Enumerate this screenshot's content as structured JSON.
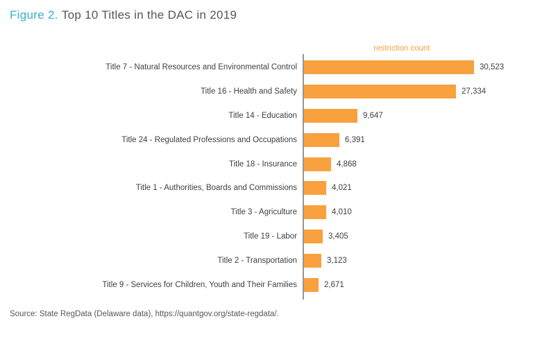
{
  "colors": {
    "accent_teal": "#35AFC9",
    "title_gray": "#54565A",
    "label_gray": "#414042",
    "bar_orange": "#F9A13E",
    "axis_gray": "#939598"
  },
  "header": {
    "figure_label": "Figure 2.",
    "title": "Top 10 Titles in the DAC in 2019"
  },
  "chart_data": {
    "type": "bar",
    "orientation": "horizontal",
    "title": "Figure 2. Top 10 Titles in the DAC in 2019",
    "legend": "restriction count",
    "legend_position": "top",
    "grid": false,
    "xlabel": "",
    "ylabel": "",
    "xlim": [
      0,
      30523
    ],
    "categories": [
      "Title 7 - Natural Resources and Environmental Control",
      "Title 16 - Health and Safety",
      "Title 14 - Education",
      "Title 24 - Regulated Professions and Occupations",
      "Title 18 - Insurance",
      "Title 1 - Authorities, Boards and Commissions",
      "Title 3 - Agriculture",
      "Title 19 - Labor",
      "Title 2 - Transportation",
      "Title 9 - Services for Children, Youth and Their Families"
    ],
    "values": [
      30523,
      27334,
      9647,
      6391,
      4868,
      4021,
      4010,
      3405,
      3123,
      2671
    ],
    "value_labels": [
      "30,523",
      "27,334",
      "9,647",
      "6,391",
      "4,868",
      "4,021",
      "4,010",
      "3,405",
      "3,123",
      "2,671"
    ]
  },
  "footer": {
    "source": "Source: State RegData (Delaware data), https://quantgov.org/state-regdata/."
  }
}
